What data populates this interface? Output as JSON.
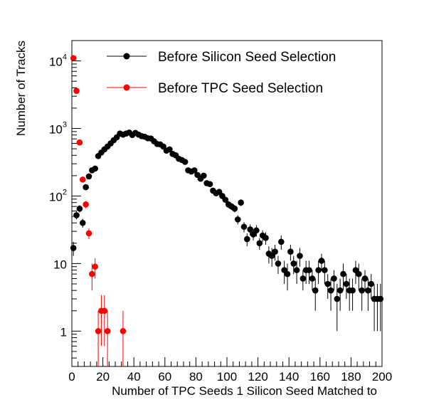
{
  "chart_data": {
    "type": "scatter",
    "xlabel": "Number of TPC Seeds 1 Silicon Seed Matched to",
    "ylabel": "Number of Tracks",
    "xlim": [
      0,
      200
    ],
    "ylim": [
      0.3,
      20000
    ],
    "yscale": "log",
    "x_ticks": [
      0,
      20,
      40,
      60,
      80,
      100,
      120,
      140,
      160,
      180,
      200
    ],
    "x_tick_labels": [
      "0",
      "20",
      "40",
      "60",
      "80",
      "100",
      "120",
      "140",
      "160",
      "180",
      "200"
    ],
    "y_tick_labels": [
      {
        "value": 1,
        "base": "1",
        "exp": ""
      },
      {
        "value": 10,
        "base": "10",
        "exp": ""
      },
      {
        "value": 100,
        "base": "10",
        "exp": "2"
      },
      {
        "value": 1000,
        "base": "10",
        "exp": "3"
      },
      {
        "value": 10000,
        "base": "10",
        "exp": "4"
      }
    ],
    "legend_position": "top-right",
    "series": [
      {
        "name": "Before Silicon Seed Selection",
        "color": "#000000",
        "x": [
          1,
          3,
          5,
          7,
          9,
          11,
          13,
          15,
          17,
          19,
          21,
          23,
          25,
          27,
          29,
          31,
          33,
          35,
          37,
          39,
          41,
          43,
          45,
          47,
          49,
          51,
          53,
          55,
          57,
          59,
          61,
          63,
          65,
          67,
          69,
          71,
          73,
          75,
          77,
          79,
          81,
          83,
          85,
          87,
          89,
          91,
          93,
          95,
          97,
          99,
          101,
          103,
          105,
          107,
          109,
          111,
          113,
          115,
          117,
          119,
          121,
          123,
          125,
          127,
          129,
          131,
          133,
          135,
          137,
          139,
          141,
          143,
          145,
          147,
          149,
          151,
          153,
          155,
          157,
          159,
          161,
          163,
          165,
          167,
          169,
          171,
          173,
          175,
          177,
          179,
          181,
          183,
          185,
          187,
          189,
          191,
          193,
          195,
          197,
          199
        ],
        "y": [
          17,
          52,
          65,
          40,
          135,
          195,
          240,
          255,
          390,
          440,
          490,
          540,
          600,
          670,
          740,
          840,
          810,
          840,
          870,
          800,
          860,
          810,
          770,
          755,
          715,
          710,
          645,
          590,
          580,
          540,
          470,
          490,
          420,
          400,
          355,
          340,
          320,
          240,
          230,
          240,
          205,
          180,
          200,
          155,
          150,
          120,
          110,
          115,
          100,
          88,
          75,
          70,
          65,
          45,
          80,
          35,
          23,
          32,
          27,
          31,
          20,
          26,
          24,
          14,
          13,
          15,
          10,
          21,
          8,
          7,
          15,
          10,
          8,
          13,
          6,
          8,
          8,
          6,
          4,
          8,
          11,
          8,
          5,
          4,
          6,
          3,
          4,
          7,
          5,
          4,
          4,
          8,
          7,
          4,
          6,
          4,
          5,
          3,
          3,
          3
        ],
        "y_err": [
          4,
          7,
          8,
          6,
          12,
          14,
          16,
          16,
          20,
          21,
          22,
          23,
          25,
          26,
          27,
          29,
          28,
          29,
          29,
          28,
          29,
          28,
          28,
          27,
          27,
          27,
          25,
          24,
          24,
          23,
          22,
          22,
          20,
          20,
          19,
          18,
          18,
          15,
          15,
          15,
          14,
          13,
          14,
          12,
          12,
          11,
          10,
          11,
          10,
          9,
          9,
          8,
          8,
          7,
          9,
          6,
          5,
          6,
          5,
          6,
          4,
          5,
          5,
          4,
          4,
          4,
          3,
          5,
          3,
          3,
          4,
          3,
          3,
          4,
          2,
          3,
          3,
          2,
          2,
          3,
          3,
          3,
          2,
          2,
          2,
          2,
          2,
          3,
          2,
          2,
          2,
          3,
          3,
          2,
          2,
          2,
          2,
          2,
          2,
          2
        ]
      },
      {
        "name": "Before TPC Seed Selection",
        "color": "#ff0000",
        "x": [
          1,
          3,
          5,
          7,
          9,
          11,
          13,
          15,
          17,
          19,
          21,
          23,
          33
        ],
        "y": [
          11000,
          3600,
          620,
          175,
          75,
          28,
          7,
          9,
          1,
          2,
          2,
          1,
          1
        ],
        "y_err": [
          105,
          60,
          25,
          13,
          9,
          5,
          3,
          3,
          1,
          1.4,
          1.4,
          1,
          1
        ]
      }
    ]
  }
}
